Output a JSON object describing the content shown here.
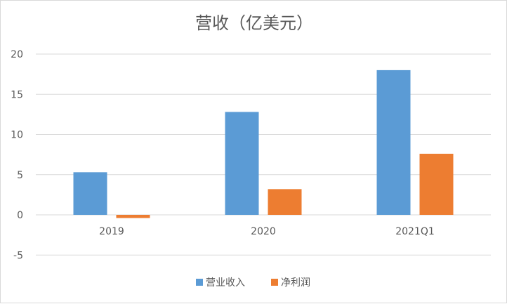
{
  "chart_data": {
    "type": "bar",
    "title": "营收（亿美元）",
    "categories": [
      "2019",
      "2020",
      "2021Q1"
    ],
    "series": [
      {
        "name": "营业收入",
        "values": [
          5.3,
          12.8,
          18.0
        ],
        "color": "#5b9bd5"
      },
      {
        "name": "净利润",
        "values": [
          -0.4,
          3.2,
          7.6
        ],
        "color": "#ed7d31"
      }
    ],
    "ylim": [
      -5,
      20
    ],
    "yticks": [
      "20",
      "15",
      "10",
      "5",
      "0",
      "-5"
    ],
    "ytick_values": [
      20,
      15,
      10,
      5,
      0,
      -5
    ],
    "grid": true,
    "legend_position": "bottom"
  }
}
